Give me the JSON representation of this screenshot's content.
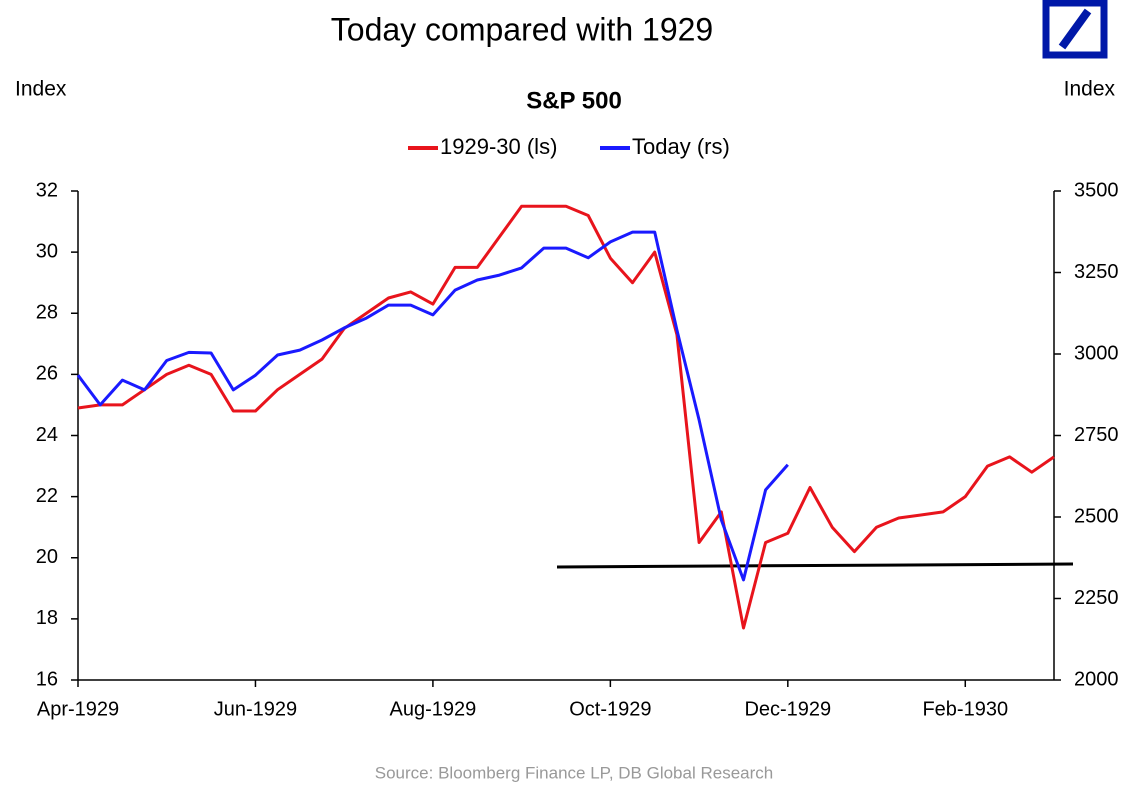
{
  "chart_data": {
    "type": "line",
    "title": "Today compared with 1929",
    "subtitle": "S&P 500",
    "ylabel": "Index",
    "y2label": "Index",
    "source": "Source:  Bloomberg Finance LP, DB Global Research",
    "categories": [
      "Apr-1929",
      null,
      null,
      null,
      null,
      null,
      null,
      null,
      "Jun-1929",
      null,
      null,
      null,
      null,
      null,
      null,
      null,
      "Aug-1929",
      null,
      null,
      null,
      null,
      null,
      null,
      null,
      "Oct-1929",
      null,
      null,
      null,
      null,
      null,
      null,
      null,
      "Dec-1929",
      null,
      null,
      null,
      null,
      null,
      null,
      null,
      "Feb-1930",
      null,
      null,
      null,
      null
    ],
    "series": [
      {
        "name": "1929-30 (ls)",
        "color": "#e8141c",
        "axis": "y",
        "values": [
          24.9,
          25.0,
          25.0,
          25.5,
          26.0,
          26.3,
          26.0,
          24.8,
          24.8,
          25.5,
          26.0,
          26.5,
          27.5,
          28.0,
          28.5,
          28.7,
          28.3,
          29.5,
          29.5,
          30.5,
          31.5,
          31.5,
          31.5,
          31.2,
          29.8,
          29.0,
          30.0,
          27.3,
          20.5,
          21.5,
          17.7,
          20.5,
          20.8,
          22.3,
          21.0,
          20.2,
          21.0,
          21.3,
          21.4,
          21.5,
          22.0,
          23.0,
          23.3,
          22.8,
          23.3
        ]
      },
      {
        "name": "Today (rs)",
        "color": "#1a1aff",
        "axis": "y2",
        "values": [
          2935,
          2844,
          2920,
          2890,
          2980,
          3005,
          3003,
          2890,
          2935,
          2997,
          3012,
          3043,
          3080,
          3110,
          3150,
          3150,
          3120,
          3196,
          3227,
          3242,
          3264,
          3325,
          3325,
          3295,
          3344,
          3374,
          3374,
          3074,
          2798,
          2491,
          2307,
          2583,
          2660,
          null,
          null,
          null,
          null,
          null,
          null,
          null,
          null,
          null,
          null,
          null,
          null
        ]
      }
    ],
    "ylim": [
      16,
      32
    ],
    "yticks": [
      16,
      18,
      20,
      22,
      24,
      26,
      28,
      30,
      32
    ],
    "y2lim": [
      2000,
      3500
    ],
    "y2ticks": [
      2000,
      2250,
      2500,
      2750,
      3000,
      3250,
      3500
    ],
    "legend": "top"
  }
}
